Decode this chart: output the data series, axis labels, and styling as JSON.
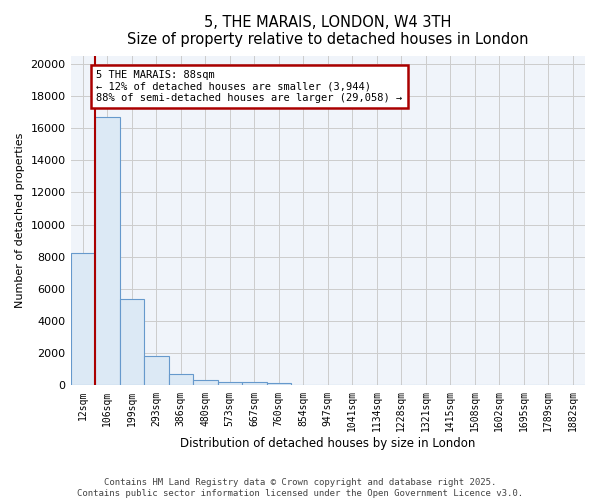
{
  "title": "5, THE MARAIS, LONDON, W4 3TH",
  "subtitle": "Size of property relative to detached houses in London",
  "xlabel": "Distribution of detached houses by size in London",
  "ylabel": "Number of detached properties",
  "bar_color": "#dce9f5",
  "bar_edge_color": "#6699cc",
  "categories": [
    "12sqm",
    "106sqm",
    "199sqm",
    "293sqm",
    "386sqm",
    "480sqm",
    "573sqm",
    "667sqm",
    "760sqm",
    "854sqm",
    "947sqm",
    "1041sqm",
    "1134sqm",
    "1228sqm",
    "1321sqm",
    "1415sqm",
    "1508sqm",
    "1602sqm",
    "1695sqm",
    "1789sqm",
    "1882sqm"
  ],
  "values": [
    8200,
    16700,
    5400,
    1850,
    700,
    350,
    230,
    190,
    160,
    0,
    0,
    0,
    0,
    0,
    0,
    0,
    0,
    0,
    0,
    0,
    0
  ],
  "property_line_color": "#aa0000",
  "annotation_text": "5 THE MARAIS: 88sqm\n← 12% of detached houses are smaller (3,944)\n88% of semi-detached houses are larger (29,058) →",
  "ylim": [
    0,
    20500
  ],
  "yticks": [
    0,
    2000,
    4000,
    6000,
    8000,
    10000,
    12000,
    14000,
    16000,
    18000,
    20000
  ],
  "footer_line1": "Contains HM Land Registry data © Crown copyright and database right 2025.",
  "footer_line2": "Contains public sector information licensed under the Open Government Licence v3.0.",
  "grid_color": "#cccccc",
  "bg_color": "#f0f4fa"
}
